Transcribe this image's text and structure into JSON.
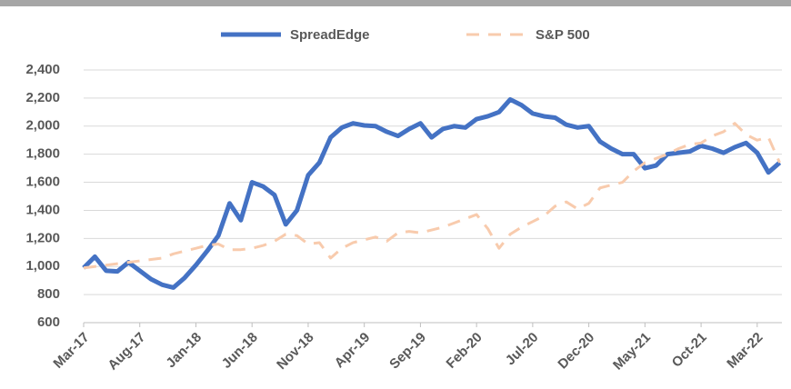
{
  "chart_data": {
    "type": "line",
    "categories": [
      "Mar-17",
      null,
      null,
      null,
      null,
      "Aug-17",
      null,
      null,
      null,
      null,
      "Jan-18",
      null,
      null,
      null,
      null,
      "Jun-18",
      null,
      null,
      null,
      null,
      "Nov-18",
      null,
      null,
      null,
      null,
      "Apr-19",
      null,
      null,
      null,
      null,
      "Sep-19",
      null,
      null,
      null,
      null,
      "Feb-20",
      null,
      null,
      null,
      null,
      "Jul-20",
      null,
      null,
      null,
      null,
      "Dec-20",
      null,
      null,
      null,
      null,
      "May-21",
      null,
      null,
      null,
      null,
      "Oct-21",
      null,
      null,
      null,
      null,
      "Mar-22",
      null,
      null
    ],
    "series": [
      {
        "name": "SpreadEdge",
        "color": "#4472c4",
        "dashed": false,
        "values": [
          990,
          1070,
          970,
          965,
          1030,
          970,
          910,
          870,
          850,
          920,
          1010,
          1110,
          1220,
          1450,
          1330,
          1600,
          1570,
          1510,
          1300,
          1400,
          1650,
          1740,
          1920,
          1990,
          2020,
          2005,
          2000,
          1960,
          1930,
          1980,
          2020,
          1920,
          1980,
          2000,
          1990,
          2050,
          2070,
          2100,
          2190,
          2150,
          2090,
          2070,
          2060,
          2010,
          1990,
          2000,
          1890,
          1840,
          1800,
          1800,
          1700,
          1720,
          1800,
          1810,
          1820,
          1860,
          1840,
          1810,
          1850,
          1880,
          1810,
          1670,
          1740
        ]
      },
      {
        "name": "S&P 500",
        "color": "#f8cbad",
        "dashed": true,
        "values": [
          990,
          1000,
          1010,
          1020,
          1030,
          1040,
          1050,
          1060,
          1090,
          1110,
          1130,
          1150,
          1160,
          1120,
          1120,
          1130,
          1150,
          1180,
          1230,
          1220,
          1160,
          1170,
          1060,
          1130,
          1170,
          1190,
          1210,
          1180,
          1240,
          1250,
          1240,
          1260,
          1280,
          1310,
          1340,
          1370,
          1270,
          1130,
          1230,
          1280,
          1320,
          1360,
          1430,
          1460,
          1410,
          1450,
          1560,
          1580,
          1600,
          1680,
          1740,
          1770,
          1800,
          1840,
          1870,
          1880,
          1930,
          1960,
          2020,
          1940,
          1900,
          1920,
          1740
        ]
      }
    ],
    "ylim": [
      600,
      2400
    ],
    "yticks": [
      {
        "value": 600,
        "label": "600"
      },
      {
        "value": 800,
        "label": "800"
      },
      {
        "value": 1000,
        "label": "1,000"
      },
      {
        "value": 1200,
        "label": "1,200"
      },
      {
        "value": 1400,
        "label": "1,400"
      },
      {
        "value": 1600,
        "label": "1,600"
      },
      {
        "value": 1800,
        "label": "1,800"
      },
      {
        "value": 2000,
        "label": "2,000"
      },
      {
        "value": 2200,
        "label": "2,200"
      },
      {
        "value": 2400,
        "label": "2,400"
      }
    ],
    "grid": true,
    "legend": "top"
  }
}
